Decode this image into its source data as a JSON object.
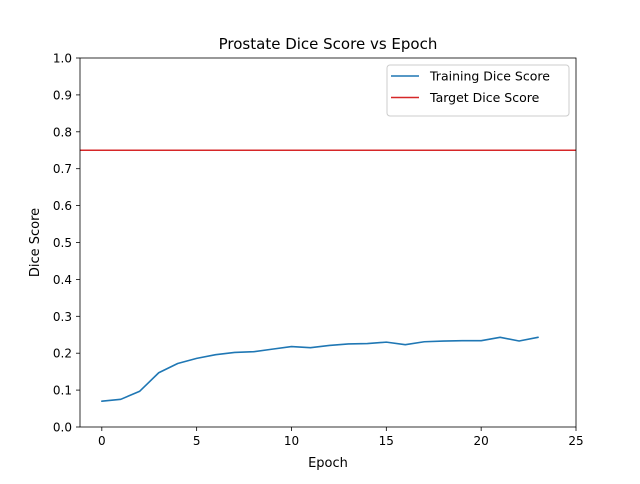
{
  "chart_data": {
    "type": "line",
    "title": "Prostate Dice Score vs Epoch",
    "xlabel": "Epoch",
    "ylabel": "Dice Score",
    "xlim": [
      -1.15,
      25
    ],
    "ylim": [
      0,
      1.0
    ],
    "xticks": [
      0,
      5,
      10,
      15,
      20,
      25
    ],
    "yticks": [
      0.0,
      0.1,
      0.2,
      0.3,
      0.4,
      0.5,
      0.6,
      0.7,
      0.8,
      0.9,
      1.0
    ],
    "xtick_labels": [
      "0",
      "5",
      "10",
      "15",
      "20",
      "25"
    ],
    "ytick_labels": [
      "0.0",
      "0.1",
      "0.2",
      "0.3",
      "0.4",
      "0.5",
      "0.6",
      "0.7",
      "0.8",
      "0.9",
      "1.0"
    ],
    "grid": false,
    "legend_position": "top-right",
    "series": [
      {
        "name": "Training Dice Score",
        "color": "#1f77b4",
        "x": [
          0,
          1,
          2,
          3,
          4,
          5,
          6,
          7,
          8,
          9,
          10,
          11,
          12,
          13,
          14,
          15,
          16,
          17,
          18,
          19,
          20,
          21,
          22,
          23
        ],
        "values": [
          0.07,
          0.075,
          0.097,
          0.147,
          0.172,
          0.186,
          0.196,
          0.202,
          0.204,
          0.211,
          0.218,
          0.215,
          0.221,
          0.225,
          0.226,
          0.23,
          0.223,
          0.231,
          0.233,
          0.234,
          0.234,
          0.243,
          0.233,
          0.243
        ]
      }
    ],
    "reference_lines": [
      {
        "name": "Target Dice Score",
        "color": "#d62728",
        "orientation": "horizontal",
        "y": 0.75
      }
    ]
  }
}
